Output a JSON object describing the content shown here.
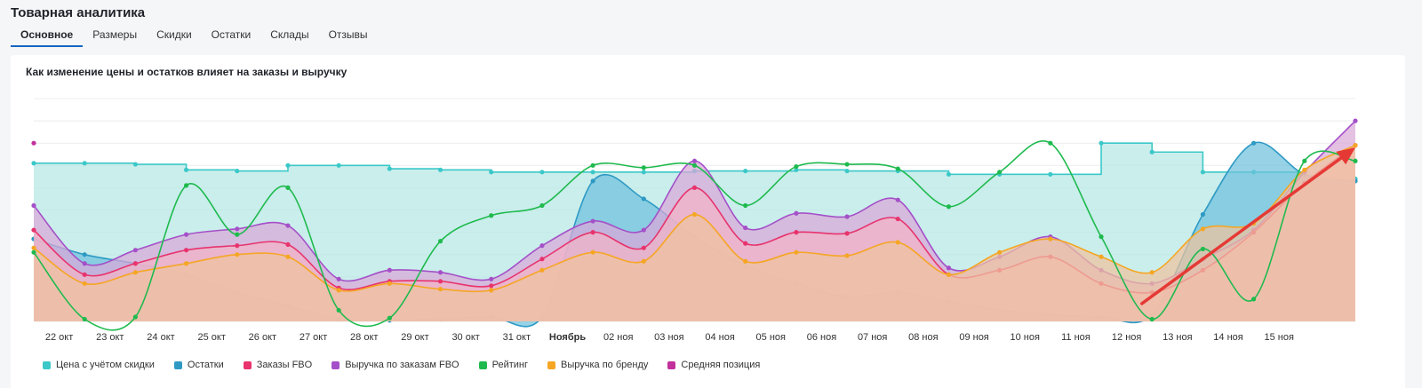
{
  "page": {
    "title": "Товарная аналитика"
  },
  "tabs": [
    {
      "label": "Основное",
      "active": true
    },
    {
      "label": "Размеры",
      "active": false
    },
    {
      "label": "Скидки",
      "active": false
    },
    {
      "label": "Остатки",
      "active": false
    },
    {
      "label": "Склады",
      "active": false
    },
    {
      "label": "Отзывы",
      "active": false
    }
  ],
  "chart": {
    "title": "Как изменение цены и остатков влияет на заказы и выручку"
  },
  "colors": {
    "tab_active_underline": "#1565c0",
    "annotation_arrow": "#e53935"
  },
  "chart_data": {
    "type": "area",
    "title": "Как изменение цены и остатков влияет на заказы и выручку",
    "x_labels": [
      "22 окт",
      "23 окт",
      "24 окт",
      "25 окт",
      "26 окт",
      "27 окт",
      "28 окт",
      "29 окт",
      "30 окт",
      "31 окт",
      "Ноябрь",
      "02 ноя",
      "03 ноя",
      "04 ноя",
      "05 ноя",
      "06 ноя",
      "07 ноя",
      "08 ноя",
      "09 ноя",
      "10 ноя",
      "11 ноя",
      "12 ноя",
      "13 ноя",
      "14 ноя",
      "15 ноя"
    ],
    "x_bold_labels": [
      "Ноябрь"
    ],
    "x_start": 21.5,
    "x_end": 47.5,
    "x_label_start": 22,
    "ylim": [
      0,
      100
    ],
    "grid": true,
    "legend_position": "bottom-left",
    "y_axis_labels_shown": false,
    "series": [
      {
        "name": "Цена с учётом скидки",
        "color": "#3cc8c8",
        "fill": "#b5e7e4",
        "type": "step",
        "x": [
          21.5,
          22.5,
          23.5,
          24.5,
          25.5,
          26.5,
          27.5,
          28.5,
          29.5,
          30.5,
          31.5,
          32.5,
          33.5,
          34.5,
          35.5,
          36.5,
          37.5,
          38.5,
          39.5,
          40.5,
          41.5,
          42.5,
          43.5,
          44.5,
          45.5,
          46.5,
          47.5
        ],
        "y": [
          71,
          71,
          70.5,
          68,
          67.5,
          70,
          70,
          68.5,
          68,
          67,
          67,
          67,
          67,
          67.5,
          67.5,
          68,
          67.5,
          67.5,
          66,
          66,
          66,
          80,
          76,
          67,
          67,
          63,
          64
        ]
      },
      {
        "name": "Остатки",
        "color": "#2e9ac4",
        "fill": "#6fc0dc",
        "type": "smooth",
        "x": [
          21.5,
          22.5,
          23.5,
          24.5,
          25.5,
          26.5,
          27.5,
          28.5,
          29.5,
          30.5,
          31.5,
          32.5,
          33.5,
          34.5,
          35.5,
          36.5,
          37.5,
          38.5,
          39.5,
          40.5,
          41.5,
          42.5,
          43.5,
          44.5,
          45.5,
          46.5,
          47.5
        ],
        "y": [
          37,
          30,
          26,
          21,
          13,
          7,
          1,
          0.5,
          1,
          2,
          2,
          63,
          55,
          38,
          25,
          17,
          11,
          13,
          9,
          5,
          3,
          2,
          3,
          48,
          80,
          66,
          63
        ]
      },
      {
        "name": "Заказы FBO",
        "color": "#e8336d",
        "fill": "#f2b3c6",
        "type": "smooth",
        "x": [
          21.5,
          22.5,
          23.5,
          24.5,
          25.5,
          26.5,
          27.5,
          28.5,
          29.5,
          30.5,
          31.5,
          32.5,
          33.5,
          34.5,
          35.5,
          36.5,
          37.5,
          38.5,
          39.5,
          40.5,
          41.5,
          42.5,
          43.5,
          44.5,
          45.5,
          46.5,
          47.5
        ],
        "y": [
          41,
          21,
          26,
          32,
          34,
          34.5,
          15,
          18,
          18,
          16,
          28,
          40,
          33,
          60,
          35,
          40,
          39.5,
          46,
          21,
          23,
          29,
          17,
          13,
          23,
          40,
          62,
          79
        ]
      },
      {
        "name": "Выручка по заказам FBO",
        "color": "#a450c8",
        "fill": "#d9a8d8",
        "type": "smooth",
        "x": [
          21.5,
          22.5,
          23.5,
          24.5,
          25.5,
          26.5,
          27.5,
          28.5,
          29.5,
          30.5,
          31.5,
          32.5,
          33.5,
          34.5,
          35.5,
          36.5,
          37.5,
          38.5,
          39.5,
          40.5,
          41.5,
          42.5,
          43.5,
          44.5,
          45.5,
          46.5,
          47.5
        ],
        "y": [
          52,
          26,
          32,
          39,
          41.5,
          43,
          19,
          23,
          22,
          19,
          34,
          45,
          41,
          72,
          42,
          48.5,
          47,
          54.5,
          24,
          29,
          38,
          23,
          17,
          28,
          41,
          67,
          90
        ]
      },
      {
        "name": "Рейтинг",
        "color": "#1fba4e",
        "fill": "none",
        "type": "smooth",
        "x": [
          21.5,
          22.5,
          23.5,
          24.5,
          25.5,
          26.5,
          27.5,
          28.5,
          29.5,
          30.5,
          31.5,
          32.5,
          33.5,
          34.5,
          35.5,
          36.5,
          37.5,
          38.5,
          39.5,
          40.5,
          41.5,
          42.5,
          43.5,
          44.5,
          45.5,
          46.5,
          47.5
        ],
        "y": [
          31,
          1,
          2,
          61,
          39,
          60,
          5,
          1.5,
          36,
          47.5,
          52,
          70,
          69,
          70,
          52,
          69.5,
          70.5,
          68.5,
          51.5,
          67,
          80,
          38,
          1,
          32.5,
          10,
          72,
          72
        ]
      },
      {
        "name": "Выручка по бренду",
        "color": "#f5a623",
        "fill": "#f0c49e",
        "type": "smooth",
        "x": [
          21.5,
          22.5,
          23.5,
          24.5,
          25.5,
          26.5,
          27.5,
          28.5,
          29.5,
          30.5,
          31.5,
          32.5,
          33.5,
          34.5,
          35.5,
          36.5,
          37.5,
          38.5,
          39.5,
          40.5,
          41.5,
          42.5,
          43.5,
          44.5,
          45.5,
          46.5,
          47.5
        ],
        "y": [
          33,
          17,
          22,
          26,
          30,
          29,
          14,
          17,
          14.5,
          14,
          23,
          31,
          27,
          48,
          27,
          31,
          29.5,
          35.5,
          21,
          31,
          37,
          29,
          22,
          41.5,
          44,
          68,
          79
        ]
      },
      {
        "name": "Средняя позиция",
        "color": "#c2309c",
        "fill": "none",
        "type": "points",
        "x": [
          21.5
        ],
        "y": [
          80
        ]
      }
    ],
    "annotation": {
      "type": "arrow",
      "color": "#e53935",
      "from": [
        43.3,
        8
      ],
      "to": [
        47.5,
        78
      ]
    }
  }
}
